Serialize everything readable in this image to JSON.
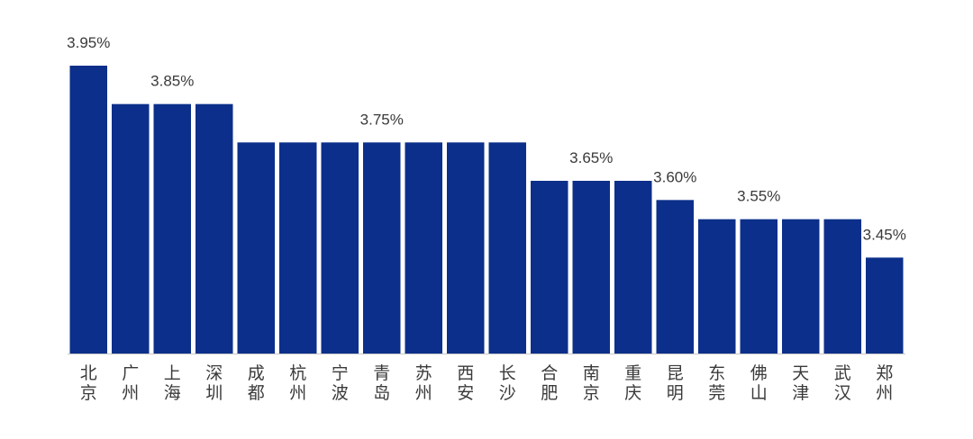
{
  "chart_data": {
    "type": "bar",
    "categories": [
      "北京",
      "广州",
      "上海",
      "深圳",
      "成都",
      "杭州",
      "宁波",
      "青岛",
      "苏州",
      "西安",
      "长沙",
      "合肥",
      "南京",
      "重庆",
      "昆明",
      "东莞",
      "佛山",
      "天津",
      "武汉",
      "郑州"
    ],
    "values": [
      3.95,
      3.85,
      3.85,
      3.85,
      3.75,
      3.75,
      3.75,
      3.75,
      3.75,
      3.75,
      3.75,
      3.65,
      3.65,
      3.65,
      3.6,
      3.55,
      3.55,
      3.55,
      3.55,
      3.45
    ],
    "data_labels": [
      {
        "index": 0,
        "text": "3.95%"
      },
      {
        "index": 2,
        "text": "3.85%"
      },
      {
        "index": 7,
        "text": "3.75%"
      },
      {
        "index": 12,
        "text": "3.65%"
      },
      {
        "index": 14,
        "text": "3.60%"
      },
      {
        "index": 16,
        "text": "3.55%"
      },
      {
        "index": 19,
        "text": "3.45%"
      }
    ],
    "ylim": [
      3.2,
      3.95
    ],
    "grid": false,
    "bar_color": "#0b2f8a",
    "axis_color": "#c8c8c8",
    "title": "",
    "xlabel": "",
    "ylabel": ""
  }
}
